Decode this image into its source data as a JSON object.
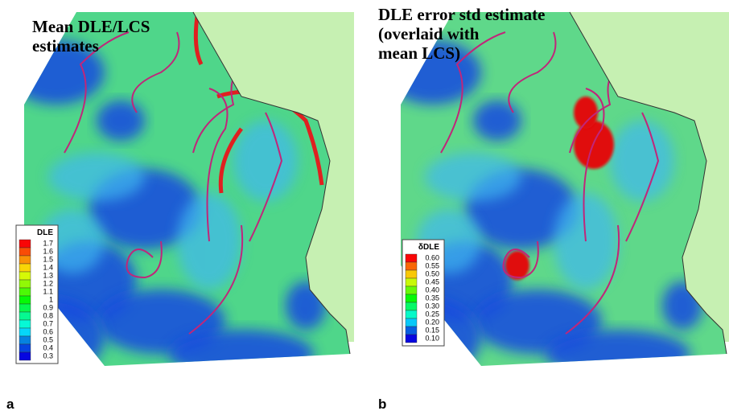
{
  "panels": [
    {
      "label": "a",
      "title": [
        "Mean DLE/LCS",
        "estimates"
      ],
      "legend_title": "DLE",
      "legend_ticks": [
        "1.7",
        "1.6",
        "1.5",
        "1.4",
        "1.3",
        "1.2",
        "1.1",
        "1",
        "0.9",
        "0.8",
        "0.7",
        "0.6",
        "0.5",
        "0.4",
        "0.3"
      ]
    },
    {
      "label": "b",
      "title": [
        "DLE error std estimate",
        "(overlaid with",
        "mean LCS)"
      ],
      "legend_title": "δDLE",
      "legend_ticks": [
        "0.60",
        "0.55",
        "0.50",
        "0.45",
        "0.40",
        "0.35",
        "0.30",
        "0.25",
        "0.20",
        "0.15",
        "0.10"
      ]
    }
  ]
}
